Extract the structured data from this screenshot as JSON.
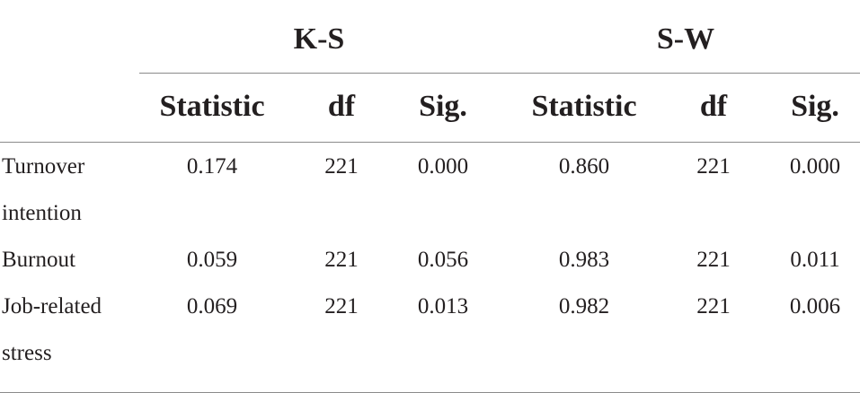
{
  "table": {
    "groups": [
      {
        "label": "K-S"
      },
      {
        "label": "S-W"
      }
    ],
    "columns": [
      "Statistic",
      "df",
      "Sig.",
      "Statistic",
      "df",
      "Sig."
    ],
    "rows": [
      {
        "label_lines": [
          "Turnover",
          "intention"
        ],
        "values": [
          "0.174",
          "221",
          "0.000",
          "0.860",
          "221",
          "0.000"
        ]
      },
      {
        "label_lines": [
          "Burnout"
        ],
        "values": [
          "0.059",
          "221",
          "0.056",
          "0.983",
          "221",
          "0.011"
        ]
      },
      {
        "label_lines": [
          "Job-related",
          "stress"
        ],
        "values": [
          "0.069",
          "221",
          "0.013",
          "0.982",
          "221",
          "0.006"
        ]
      }
    ]
  }
}
